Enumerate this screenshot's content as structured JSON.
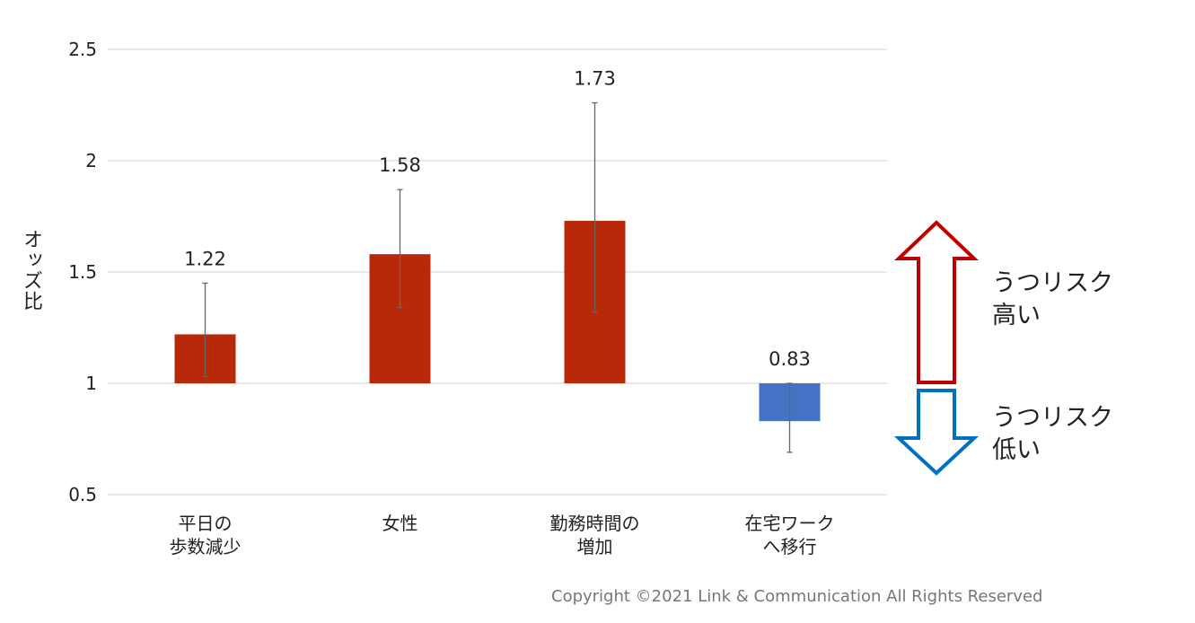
{
  "chart_data": {
    "type": "bar",
    "ylabel": "オッズ比",
    "ylim": [
      0.5,
      2.5
    ],
    "yticks": [
      "0.5",
      "1",
      "1.5",
      "2",
      "2.5"
    ],
    "baseline": 1,
    "grid": true,
    "categories": [
      [
        "平日の",
        "歩数減少"
      ],
      [
        "女性"
      ],
      [
        "勤務時間の",
        "増加"
      ],
      [
        "在宅ワーク",
        "へ移行"
      ]
    ],
    "values": [
      1.22,
      1.58,
      1.73,
      0.83
    ],
    "value_labels": [
      "1.22",
      "1.58",
      "1.73",
      "0.83"
    ],
    "error_low": [
      1.03,
      1.34,
      1.32,
      0.69
    ],
    "error_high": [
      1.45,
      1.87,
      2.26,
      1.0
    ],
    "colors": [
      "#b8290a",
      "#b8290a",
      "#b8290a",
      "#4472c4"
    ]
  },
  "annotations": {
    "risk_high": [
      "うつリスク",
      "高い"
    ],
    "risk_low": [
      "うつリスク",
      "低い"
    ],
    "arrow_high_color": "#c00000",
    "arrow_low_color": "#0070c0"
  },
  "footer": {
    "copyright": "Copyright ©2021 Link & Communication All Rights Reserved"
  }
}
